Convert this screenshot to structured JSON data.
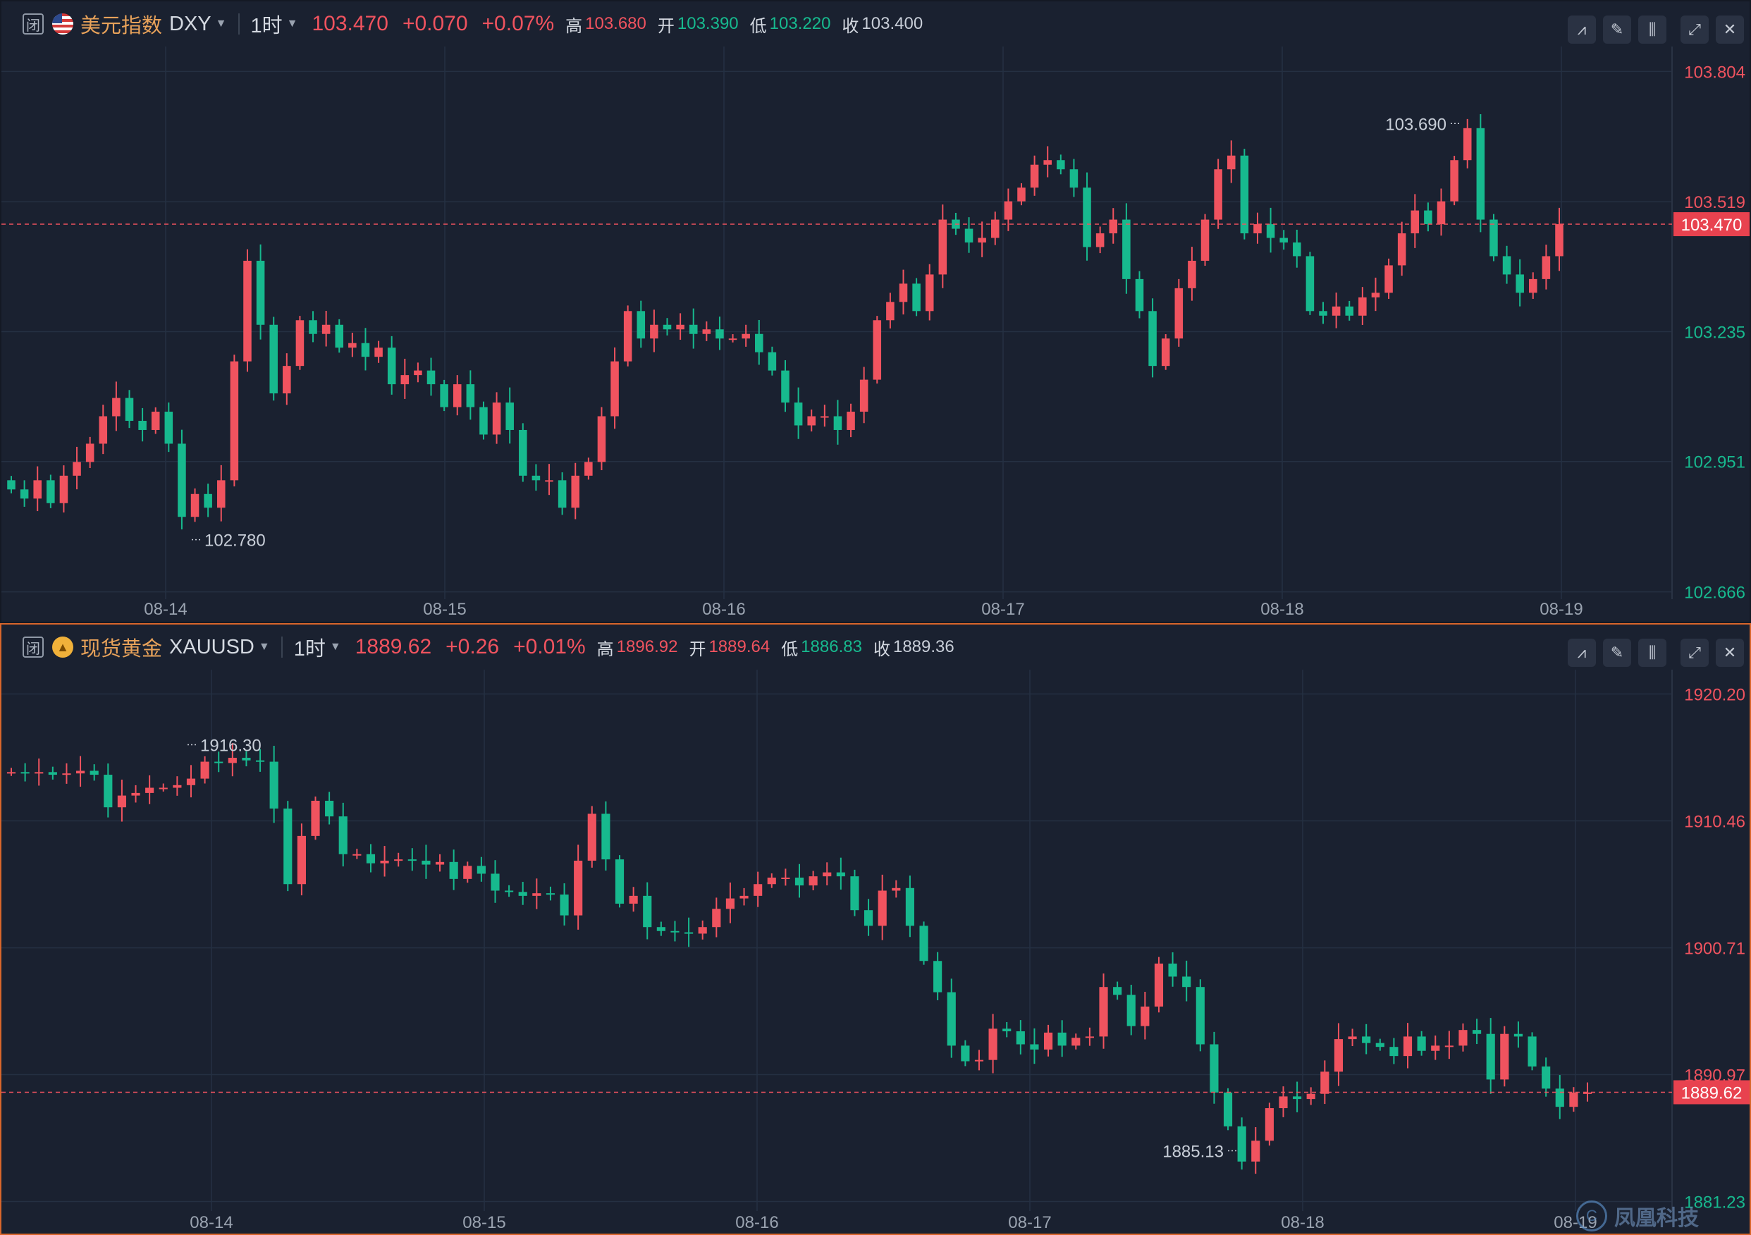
{
  "top": {
    "close_label": "闭",
    "name_cn": "美元指数",
    "symbol": "DXY",
    "period": "1时",
    "price": "103.470",
    "change": "+0.070",
    "change_pct": "+0.07%",
    "high_label": "高",
    "high": "103.680",
    "open_label": "开",
    "open": "103.390",
    "low_label": "低",
    "low": "103.220",
    "close_lbl": "收",
    "close": "103.400",
    "icons": [
      "line-chart-icon",
      "pencil-icon",
      "candles-icon",
      "expand-icon",
      "close-icon"
    ]
  },
  "bottom": {
    "close_label": "闭",
    "name_cn": "现货黄金",
    "symbol": "XAUUSD",
    "period": "1时",
    "price": "1889.62",
    "change": "+0.26",
    "change_pct": "+0.01%",
    "high_label": "高",
    "high": "1896.92",
    "open_label": "开",
    "open": "1889.64",
    "low_label": "低",
    "low": "1886.83",
    "close_lbl": "收",
    "close": "1889.36",
    "icons": [
      "line-chart-icon",
      "pencil-icon",
      "candles-icon",
      "expand-icon",
      "close-icon"
    ]
  },
  "watermark": "凤凰科技",
  "colors": {
    "up": "#f0535f",
    "down": "#17b98e",
    "background": "#1a2130",
    "grid": "#253042",
    "accent_border": "#d9662b"
  },
  "chart_data": [
    {
      "type": "candlestick",
      "symbol": "DXY",
      "x_labels": [
        "08-14",
        "08-15",
        "08-16",
        "08-17",
        "08-18",
        "08-19"
      ],
      "y_ticks": [
        "103.804",
        "103.519",
        "103.235",
        "102.951",
        "102.666"
      ],
      "ylim": [
        102.65,
        103.84
      ],
      "current_price": "103.470",
      "annotations": [
        {
          "text": "103.690",
          "price": 103.69
        },
        {
          "text": "102.780",
          "price": 102.78
        }
      ],
      "grid": true,
      "closes": [
        102.89,
        102.87,
        102.91,
        102.86,
        102.92,
        102.95,
        102.99,
        103.05,
        103.09,
        103.04,
        103.02,
        103.06,
        102.99,
        102.83,
        102.88,
        102.85,
        102.91,
        103.17,
        103.39,
        103.25,
        103.1,
        103.16,
        103.26,
        103.23,
        103.25,
        103.2,
        103.21,
        103.18,
        103.2,
        103.12,
        103.14,
        103.15,
        103.12,
        103.07,
        103.12,
        103.07,
        103.01,
        103.08,
        103.02,
        102.92,
        102.91,
        102.91,
        102.85,
        102.92,
        102.95,
        103.05,
        103.17,
        103.28,
        103.22,
        103.25,
        103.24,
        103.25,
        103.23,
        103.24,
        103.22,
        103.22,
        103.23,
        103.19,
        103.15,
        103.08,
        103.03,
        103.05,
        103.05,
        103.02,
        103.06,
        103.13,
        103.26,
        103.3,
        103.34,
        103.28,
        103.36,
        103.48,
        103.46,
        103.43,
        103.44,
        103.48,
        103.52,
        103.55,
        103.6,
        103.61,
        103.59,
        103.55,
        103.42,
        103.45,
        103.48,
        103.35,
        103.28,
        103.16,
        103.22,
        103.33,
        103.39,
        103.48,
        103.59,
        103.62,
        103.45,
        103.47,
        103.44,
        103.43,
        103.4,
        103.28,
        103.27,
        103.29,
        103.27,
        103.31,
        103.32,
        103.38,
        103.45,
        103.5,
        103.47,
        103.52,
        103.61,
        103.68,
        103.48,
        103.4,
        103.36,
        103.32,
        103.35,
        103.4,
        103.47
      ],
      "opens": [
        102.91,
        102.89,
        102.87,
        102.91,
        102.86,
        102.92,
        102.95,
        102.99,
        103.05,
        103.09,
        103.04,
        103.02,
        103.06,
        102.99,
        102.83,
        102.88,
        102.85,
        102.91,
        103.17,
        103.39,
        103.25,
        103.1,
        103.16,
        103.26,
        103.23,
        103.25,
        103.2,
        103.21,
        103.18,
        103.2,
        103.12,
        103.14,
        103.15,
        103.12,
        103.07,
        103.12,
        103.07,
        103.01,
        103.08,
        103.02,
        102.92,
        102.91,
        102.91,
        102.85,
        102.92,
        102.95,
        103.05,
        103.17,
        103.28,
        103.22,
        103.25,
        103.24,
        103.25,
        103.23,
        103.24,
        103.22,
        103.22,
        103.23,
        103.19,
        103.15,
        103.08,
        103.03,
        103.05,
        103.05,
        103.02,
        103.06,
        103.13,
        103.26,
        103.3,
        103.34,
        103.28,
        103.36,
        103.48,
        103.46,
        103.43,
        103.44,
        103.48,
        103.52,
        103.55,
        103.6,
        103.61,
        103.59,
        103.55,
        103.42,
        103.45,
        103.48,
        103.35,
        103.28,
        103.16,
        103.22,
        103.33,
        103.39,
        103.48,
        103.59,
        103.62,
        103.45,
        103.47,
        103.44,
        103.43,
        103.4,
        103.28,
        103.27,
        103.29,
        103.27,
        103.31,
        103.32,
        103.38,
        103.45,
        103.5,
        103.47,
        103.52,
        103.61,
        103.68,
        103.48,
        103.4,
        103.36,
        103.32,
        103.35,
        103.4
      ]
    },
    {
      "type": "candlestick",
      "symbol": "XAUUSD",
      "x_labels": [
        "08-14",
        "08-15",
        "08-16",
        "08-17",
        "08-18",
        "08-19"
      ],
      "y_ticks": [
        "1920.20",
        "1910.46",
        "1900.71",
        "1890.97",
        "1881.23"
      ],
      "ylim": [
        1880.5,
        1921.2
      ],
      "current_price": "1889.62",
      "annotations": [
        {
          "text": "1916.30",
          "price": 1916.3
        },
        {
          "text": "1885.13",
          "price": 1885.13
        }
      ],
      "grid": true,
      "closes": [
        1914.2,
        1914.1,
        1914.2,
        1914.0,
        1914.1,
        1914.3,
        1914.0,
        1911.5,
        1912.4,
        1912.6,
        1913.0,
        1913.0,
        1913.2,
        1913.7,
        1915.0,
        1914.9,
        1915.3,
        1915.1,
        1915.0,
        1911.4,
        1905.6,
        1909.3,
        1912.0,
        1910.8,
        1907.9,
        1907.9,
        1907.2,
        1907.4,
        1907.5,
        1907.4,
        1907.1,
        1907.3,
        1906.0,
        1907.0,
        1906.4,
        1905.1,
        1905.0,
        1904.7,
        1904.9,
        1904.8,
        1903.2,
        1907.4,
        1911.0,
        1907.5,
        1904.1,
        1904.7,
        1902.3,
        1902.0,
        1901.9,
        1901.8,
        1902.3,
        1903.7,
        1904.5,
        1904.7,
        1905.6,
        1906.1,
        1906.1,
        1905.5,
        1906.2,
        1906.5,
        1906.2,
        1903.6,
        1902.4,
        1905.1,
        1905.3,
        1902.4,
        1899.7,
        1897.3,
        1893.2,
        1892.0,
        1892.1,
        1894.5,
        1894.3,
        1893.3,
        1892.9,
        1894.2,
        1893.2,
        1893.8,
        1893.9,
        1897.7,
        1897.1,
        1894.7,
        1896.2,
        1899.5,
        1898.5,
        1897.7,
        1893.3,
        1889.6,
        1887.0,
        1884.3,
        1885.9,
        1888.4,
        1889.3,
        1889.1,
        1889.5,
        1891.2,
        1893.7,
        1893.9,
        1893.4,
        1893.1,
        1892.4,
        1893.9,
        1892.8,
        1893.2,
        1893.2,
        1894.4,
        1894.1,
        1890.6,
        1894.1,
        1893.9,
        1891.6,
        1889.9,
        1888.5,
        1889.6,
        1889.6
      ]
    }
  ]
}
